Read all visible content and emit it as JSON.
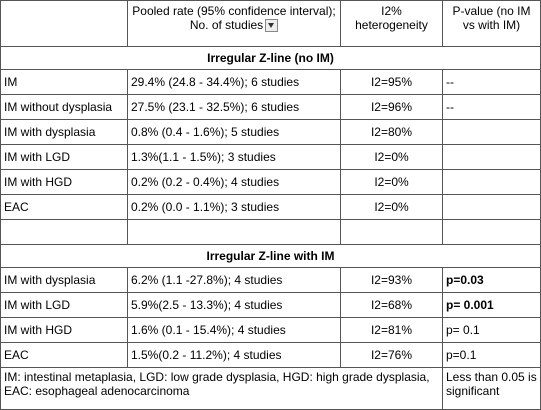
{
  "table": {
    "header": [
      "Pooled rate (95% confidence interval); No. of studies",
      "I2% heterogeneity",
      "P-value (no IM vs with IM)"
    ],
    "sections": [
      {
        "title": "Irregular Z-line (no IM)",
        "rows": [
          [
            "IM",
            "29.4% (24.8 - 34.4%); 6 studies",
            "I2=95%",
            "--"
          ],
          [
            "IM without dysplasia",
            "27.5% (23.1 - 32.5%); 6 studies",
            "I2=96%",
            "--"
          ],
          [
            "IM with dysplasia",
            "0.8% (0.4 - 1.6%); 5 studies",
            "I2=80%"
          ],
          [
            "IM with LGD",
            "1.3%(1.1 - 1.5%); 3 studies",
            "I2=0%"
          ],
          [
            "IM with HGD",
            "0.2% (0.2 - 0.4%); 4 studies",
            "I2=0%"
          ],
          [
            "EAC",
            "0.2% (0.0 - 1.1%); 3 studies",
            "I2=0%"
          ]
        ]
      },
      {
        "title": "Irregular Z-line with IM",
        "rows": [
          [
            "IM with dysplasia",
            "6.2% (1.1 -27.8%); 4 studies",
            "I2=93%",
            "p=0.03"
          ],
          [
            "IM with LGD",
            "5.9%(2.5 - 13.3%); 4 studies",
            "I2=68%",
            "p= 0.001"
          ],
          [
            "IM with HGD",
            "1.6% (0.1 - 15.4%); 4 studies",
            "I2=81%",
            "p= 0.1"
          ],
          [
            "EAC",
            "1.5%(0.2 - 11.2%); 4 studies",
            "I2=76%",
            "p=0.1"
          ]
        ],
        "bold_p": [
          true,
          true,
          false,
          false
        ]
      }
    ],
    "footer": [
      "IM: intestinal metaplasia, LGD: low grade dysplasia, HGD: high grade dysplasia, EAC: esophageal adenocarcinoma",
      "Less than 0.05 is significant"
    ]
  }
}
